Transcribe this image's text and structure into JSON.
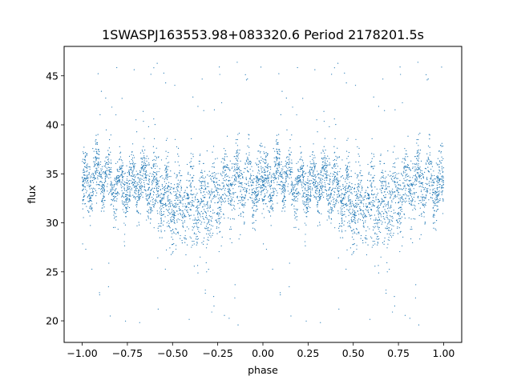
{
  "chart_data": {
    "type": "scatter",
    "title": "1SWASPJ163553.98+083320.6 Period 2178201.5s",
    "xlabel": "phase",
    "ylabel": "flux",
    "xlim": [
      -1.1,
      1.1
    ],
    "ylim": [
      17.8,
      48.0
    ],
    "xticks": [
      -1.0,
      -0.75,
      -0.5,
      -0.25,
      0.0,
      0.25,
      0.5,
      0.75,
      1.0
    ],
    "xtick_labels": [
      "−1.00",
      "−0.75",
      "−0.50",
      "−0.25",
      "0.00",
      "0.25",
      "0.50",
      "0.75",
      "1.00"
    ],
    "yticks": [
      20,
      25,
      30,
      35,
      40,
      45
    ],
    "ytick_labels": [
      "20",
      "25",
      "30",
      "35",
      "40",
      "45"
    ],
    "grid": false,
    "point_color": "#1f77b4",
    "series": [
      {
        "phase_range": [
          -1.0,
          1.0
        ],
        "phase_fold": "same light curve repeated with period 1 in phase",
        "profile_phase": [
          0.0,
          0.05,
          0.1,
          0.15,
          0.2,
          0.25,
          0.3,
          0.35,
          0.4,
          0.45,
          0.5,
          0.55,
          0.6,
          0.65,
          0.7,
          0.75,
          0.8,
          0.85,
          0.9,
          0.95,
          1.0
        ],
        "profile_flux_median": [
          33.5,
          34.5,
          34.8,
          34.3,
          33.8,
          33.5,
          33.8,
          34.3,
          33.5,
          32.8,
          32.0,
          31.5,
          31.5,
          31.8,
          32.0,
          33.0,
          33.8,
          34.2,
          34.0,
          33.5,
          33.5
        ],
        "profile_flux_spread": [
          2.2,
          2.2,
          2.0,
          1.8,
          1.8,
          1.9,
          2.0,
          2.1,
          2.2,
          2.4,
          2.6,
          2.8,
          3.0,
          3.2,
          3.0,
          2.8,
          2.5,
          2.3,
          2.2,
          2.2,
          2.2
        ],
        "outlier_flux_range": [
          19.5,
          47.0
        ]
      }
    ]
  }
}
